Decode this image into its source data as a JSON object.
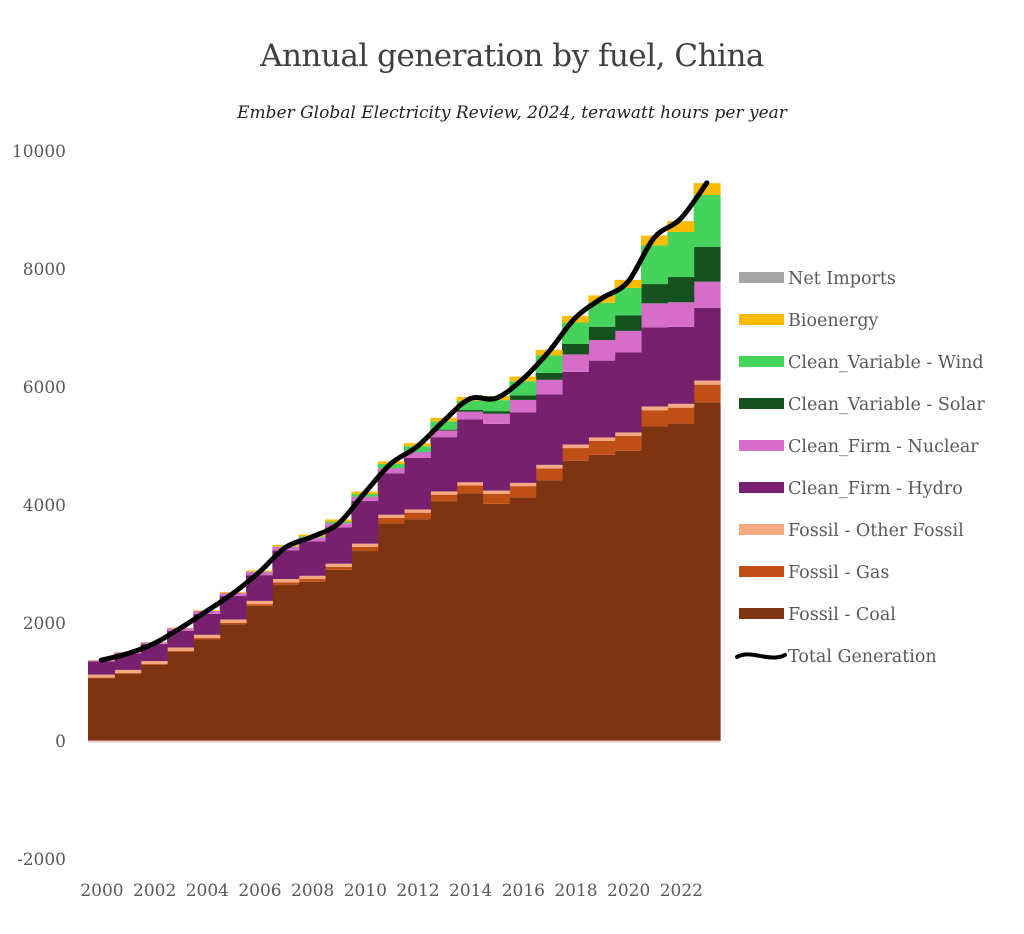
{
  "chart_data": {
    "type": "area",
    "stacked": true,
    "step": true,
    "title": "Annual generation by fuel, China",
    "subtitle": "Ember Global Electricity Review, 2024, terawatt hours per year",
    "xlabel": "",
    "ylabel": "",
    "ylim": [
      -2000,
      10000
    ],
    "yticks": [
      -2000,
      0,
      2000,
      4000,
      6000,
      8000,
      10000
    ],
    "ytick_labels": [
      "-2000",
      "0",
      "2000",
      "4000",
      "6000",
      "8000",
      "10000"
    ],
    "xticks": [
      2000,
      2002,
      2004,
      2006,
      2008,
      2010,
      2012,
      2014,
      2016,
      2018,
      2020,
      2022
    ],
    "xtick_labels": [
      "2000",
      "2002",
      "2004",
      "2006",
      "2008",
      "2010",
      "2012",
      "2014",
      "2016",
      "2018",
      "2020",
      "2022"
    ],
    "grid": false,
    "legend_position": "right",
    "x": [
      2000,
      2001,
      2002,
      2003,
      2004,
      2005,
      2006,
      2007,
      2008,
      2009,
      2010,
      2011,
      2012,
      2013,
      2014,
      2015,
      2016,
      2017,
      2018,
      2019,
      2020,
      2021,
      2022,
      2023
    ],
    "series": [
      {
        "name": "Fossil - Coal",
        "color": "#7f3411",
        "values": [
          1060,
          1140,
          1290,
          1510,
          1720,
          1980,
          2290,
          2650,
          2700,
          2900,
          3220,
          3690,
          3760,
          4060,
          4200,
          4020,
          4130,
          4420,
          4750,
          4850,
          4920,
          5330,
          5380,
          5740
        ]
      },
      {
        "name": "Fossil - Gas",
        "color": "#c04f15",
        "values": [
          15,
          15,
          15,
          20,
          25,
          25,
          30,
          40,
          45,
          50,
          70,
          90,
          110,
          115,
          130,
          170,
          190,
          200,
          215,
          235,
          250,
          275,
          270,
          300
        ]
      },
      {
        "name": "Fossil - Other Fossil",
        "color": "#f4a983",
        "values": [
          50,
          50,
          50,
          55,
          55,
          55,
          55,
          55,
          55,
          55,
          55,
          55,
          55,
          55,
          55,
          55,
          55,
          60,
          60,
          60,
          60,
          65,
          65,
          70
        ]
      },
      {
        "name": "Clean_Firm - Hydro",
        "color": "#76206e",
        "values": [
          222,
          277,
          288,
          284,
          354,
          397,
          436,
          485,
          585,
          616,
          722,
          699,
          872,
          920,
          1064,
          1130,
          1193,
          1194,
          1232,
          1302,
          1355,
          1340,
          1303,
          1230
        ]
      },
      {
        "name": "Clean_Firm - Nuclear",
        "color": "#d66ec9",
        "values": [
          17,
          18,
          25,
          43,
          50,
          53,
          55,
          62,
          68,
          70,
          74,
          87,
          98,
          112,
          133,
          171,
          213,
          248,
          295,
          349,
          366,
          408,
          418,
          445
        ]
      },
      {
        "name": "Clean_Variable - Solar",
        "color": "#155220",
        "values": [
          0,
          0,
          0,
          0,
          0,
          0,
          0,
          0,
          0,
          0,
          1,
          3,
          6,
          15,
          29,
          45,
          75,
          118,
          177,
          225,
          261,
          327,
          428,
          590
        ]
      },
      {
        "name": "Clean_Variable - Wind",
        "color": "#45d35b",
        "values": [
          1,
          1,
          2,
          2,
          3,
          2,
          4,
          6,
          15,
          28,
          45,
          70,
          96,
          141,
          156,
          186,
          241,
          295,
          365,
          406,
          467,
          656,
          763,
          880
        ]
      },
      {
        "name": "Bioenergy",
        "color": "#fbbb00",
        "values": [
          5,
          5,
          5,
          6,
          10,
          15,
          20,
          25,
          30,
          36,
          40,
          45,
          50,
          60,
          66,
          70,
          80,
          95,
          111,
          125,
          136,
          165,
          185,
          200
        ]
      },
      {
        "name": "Net Imports",
        "color": "#a6a6a6",
        "values": [
          0,
          0,
          0,
          0,
          0,
          0,
          0,
          0,
          0,
          0,
          0,
          0,
          0,
          0,
          0,
          0,
          0,
          0,
          0,
          0,
          0,
          0,
          0,
          0
        ]
      }
    ],
    "line_series": {
      "name": "Total Generation",
      "color": "#000000",
      "values": [
        1370,
        1480,
        1650,
        1910,
        2200,
        2500,
        2860,
        3280,
        3460,
        3680,
        4200,
        4700,
        4990,
        5420,
        5800,
        5810,
        6130,
        6600,
        7170,
        7500,
        7780,
        8530,
        8850,
        9460
      ]
    },
    "legend": [
      {
        "label": "Net Imports",
        "color": "#a6a6a6",
        "kind": "patch"
      },
      {
        "label": "Bioenergy",
        "color": "#fbbb00",
        "kind": "patch"
      },
      {
        "label": "Clean_Variable - Wind",
        "color": "#45d35b",
        "kind": "patch"
      },
      {
        "label": "Clean_Variable - Solar",
        "color": "#155220",
        "kind": "patch"
      },
      {
        "label": "Clean_Firm - Nuclear",
        "color": "#d66ec9",
        "kind": "patch"
      },
      {
        "label": "Clean_Firm - Hydro",
        "color": "#76206e",
        "kind": "patch"
      },
      {
        "label": "Fossil - Other Fossil",
        "color": "#f4a983",
        "kind": "patch"
      },
      {
        "label": "Fossil - Gas",
        "color": "#c04f15",
        "kind": "patch"
      },
      {
        "label": "Fossil - Coal",
        "color": "#7f3411",
        "kind": "patch"
      },
      {
        "label": "Total Generation",
        "color": "#000000",
        "kind": "line"
      }
    ]
  }
}
